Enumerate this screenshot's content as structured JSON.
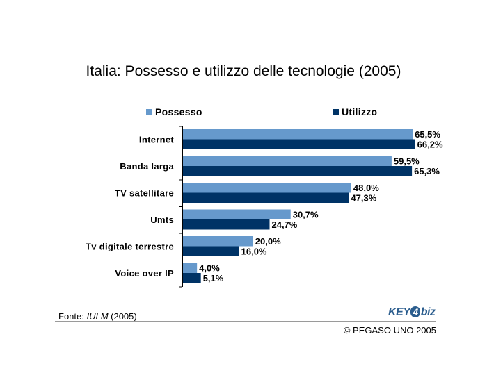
{
  "header": {
    "title": "Italia: Possesso e utilizzo delle tecnologie (2005)"
  },
  "legend": [
    {
      "label": "Possesso",
      "color": "#6699cc"
    },
    {
      "label": "Utilizzo",
      "color": "#003366"
    }
  ],
  "chart_data": {
    "type": "bar",
    "orientation": "horizontal",
    "title": "Italia: Possesso e utilizzo delle tecnologie (2005)",
    "categories": [
      "Internet",
      "Banda larga",
      "TV satellitare",
      "Umts",
      "Tv digitale terrestre",
      "Voice over IP"
    ],
    "series": [
      {
        "name": "Possesso",
        "color": "#6699cc",
        "values": [
          65.5,
          59.5,
          48.0,
          30.7,
          20.0,
          4.0
        ],
        "labels": [
          "65,5%",
          "59,5%",
          "48,0%",
          "30,7%",
          "20,0%",
          "4,0%"
        ]
      },
      {
        "name": "Utilizzo",
        "color": "#003366",
        "values": [
          66.2,
          65.3,
          47.3,
          24.7,
          16.0,
          5.1
        ],
        "labels": [
          "66,2%",
          "65,3%",
          "47,3%",
          "24,7%",
          "16,0%",
          "5,1%"
        ]
      }
    ],
    "xlim": [
      0,
      75
    ],
    "grid": false,
    "legend_position": "top"
  },
  "footer": {
    "source_prefix": "Fonte: ",
    "source_name": "IULM",
    "source_year": " (2005)",
    "logo_left": "KEY",
    "logo_mark": "4",
    "logo_right": "biz",
    "copyright": "© PEGASO UNO 2005"
  }
}
